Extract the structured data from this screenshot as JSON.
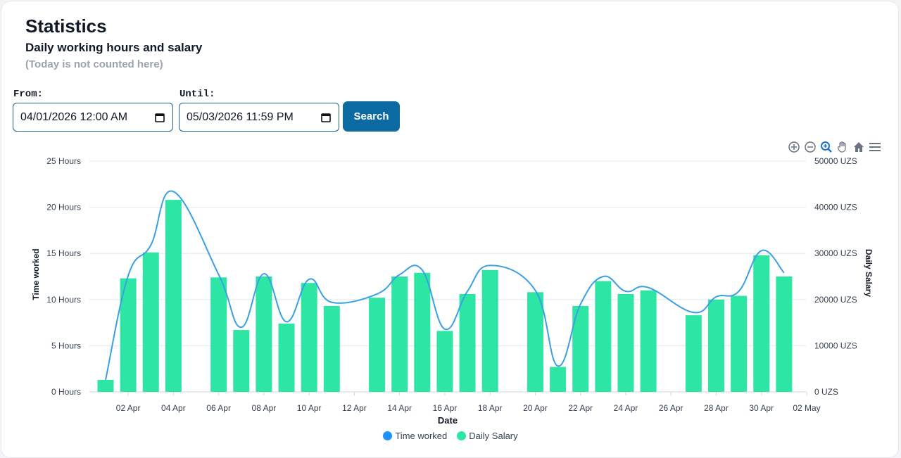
{
  "header": {
    "title": "Statistics",
    "subtitle": "Daily working hours and salary",
    "note": "(Today is not counted here)"
  },
  "filters": {
    "from_label": "From:",
    "from_value": "04/01/2026 12:00 AM",
    "until_label": "Until:",
    "until_value": "05/03/2026 11:59 PM",
    "search_label": "Search"
  },
  "toolbar": {
    "icons": [
      "zoom-in-icon",
      "zoom-out-icon",
      "zoom-selection-icon",
      "pan-hand-icon",
      "reset-home-icon",
      "menu-icon"
    ]
  },
  "colors": {
    "line": "#3aa0e6",
    "bars": "#2ee6a3",
    "legend_line_marker": "#1e90ff",
    "legend_bar_marker": "#2ee6a3",
    "toolbar_active": "#1a73c9",
    "toolbar_idle": "#6b7280"
  },
  "chart_data": {
    "type": "bar",
    "xlabel": "Date",
    "ylabel_left": "Time worked",
    "ylabel_right": "Daily Salary",
    "x_ticks": [
      "02 Apr",
      "04 Apr",
      "06 Apr",
      "08 Apr",
      "10 Apr",
      "12 Apr",
      "14 Apr",
      "16 Apr",
      "18 Apr",
      "20 Apr",
      "22 Apr",
      "24 Apr",
      "26 Apr",
      "28 Apr",
      "30 Apr",
      "02 May"
    ],
    "y_left_ticks": [
      "0 Hours",
      "5 Hours",
      "10 Hours",
      "15 Hours",
      "20 Hours",
      "25 Hours"
    ],
    "y_right_ticks": [
      "0 UZS",
      "10000 UZS",
      "20000 UZS",
      "30000 UZS",
      "40000 UZS",
      "50000 UZS"
    ],
    "ylim_left": [
      0,
      25
    ],
    "ylim_right": [
      0,
      50000
    ],
    "grid": true,
    "legend_position": "bottom",
    "series": [
      {
        "name": "Time worked",
        "type": "line",
        "axis": "left",
        "points": [
          {
            "date": "2026-04-01",
            "value": 1.3
          },
          {
            "date": "2026-04-02",
            "value": 12.6
          },
          {
            "date": "2026-04-03",
            "value": 15.9
          },
          {
            "date": "2026-04-04",
            "value": 21.7
          },
          {
            "date": "2026-04-06",
            "value": 12.7
          },
          {
            "date": "2026-04-07",
            "value": 7.0
          },
          {
            "date": "2026-04-08",
            "value": 12.8
          },
          {
            "date": "2026-04-09",
            "value": 7.6
          },
          {
            "date": "2026-04-10",
            "value": 12.2
          },
          {
            "date": "2026-04-11",
            "value": 9.7
          },
          {
            "date": "2026-04-13",
            "value": 10.6
          },
          {
            "date": "2026-04-14",
            "value": 12.7
          },
          {
            "date": "2026-04-15",
            "value": 13.2
          },
          {
            "date": "2026-04-16",
            "value": 6.8
          },
          {
            "date": "2026-04-17",
            "value": 10.9
          },
          {
            "date": "2026-04-18",
            "value": 13.7
          },
          {
            "date": "2026-04-20",
            "value": 11.0
          },
          {
            "date": "2026-04-21",
            "value": 2.8
          },
          {
            "date": "2026-04-22",
            "value": 9.5
          },
          {
            "date": "2026-04-23",
            "value": 12.5
          },
          {
            "date": "2026-04-24",
            "value": 10.9
          },
          {
            "date": "2026-04-25",
            "value": 11.3
          },
          {
            "date": "2026-04-27",
            "value": 8.6
          },
          {
            "date": "2026-04-28",
            "value": 10.3
          },
          {
            "date": "2026-04-29",
            "value": 10.9
          },
          {
            "date": "2026-04-30",
            "value": 15.3
          },
          {
            "date": "2026-05-01",
            "value": 12.9
          }
        ]
      },
      {
        "name": "Daily Salary",
        "type": "bar",
        "axis": "right",
        "points": [
          {
            "date": "2026-04-01",
            "value": 2600
          },
          {
            "date": "2026-04-02",
            "value": 24600
          },
          {
            "date": "2026-04-03",
            "value": 30200
          },
          {
            "date": "2026-04-04",
            "value": 41600
          },
          {
            "date": "2026-04-06",
            "value": 24800
          },
          {
            "date": "2026-04-07",
            "value": 13400
          },
          {
            "date": "2026-04-08",
            "value": 25000
          },
          {
            "date": "2026-04-09",
            "value": 14800
          },
          {
            "date": "2026-04-10",
            "value": 23600
          },
          {
            "date": "2026-04-11",
            "value": 18600
          },
          {
            "date": "2026-04-13",
            "value": 20400
          },
          {
            "date": "2026-04-14",
            "value": 25000
          },
          {
            "date": "2026-04-15",
            "value": 25800
          },
          {
            "date": "2026-04-16",
            "value": 13200
          },
          {
            "date": "2026-04-17",
            "value": 21200
          },
          {
            "date": "2026-04-18",
            "value": 26400
          },
          {
            "date": "2026-04-20",
            "value": 21600
          },
          {
            "date": "2026-04-21",
            "value": 5400
          },
          {
            "date": "2026-04-22",
            "value": 18600
          },
          {
            "date": "2026-04-23",
            "value": 24000
          },
          {
            "date": "2026-04-24",
            "value": 21200
          },
          {
            "date": "2026-04-25",
            "value": 22000
          },
          {
            "date": "2026-04-27",
            "value": 16600
          },
          {
            "date": "2026-04-28",
            "value": 20000
          },
          {
            "date": "2026-04-29",
            "value": 20800
          },
          {
            "date": "2026-04-30",
            "value": 29600
          },
          {
            "date": "2026-05-01",
            "value": 25000
          }
        ]
      }
    ]
  }
}
